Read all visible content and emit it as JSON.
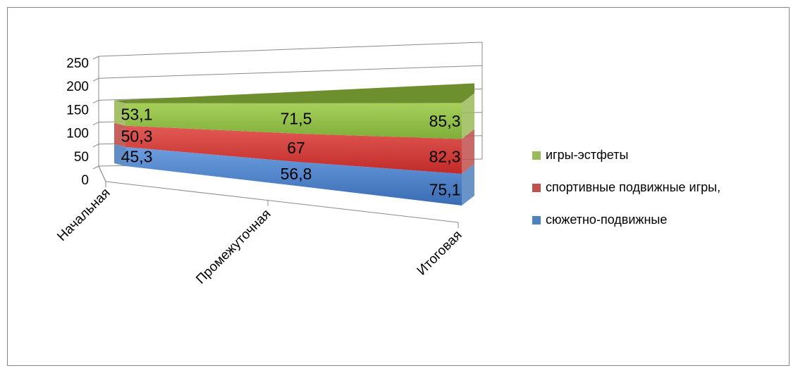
{
  "chart_data": {
    "type": "area",
    "title": "",
    "xlabel": "",
    "ylabel": "",
    "categories": [
      "Начальная",
      "Промежуточная",
      "Итоговая"
    ],
    "yticks": [
      "0",
      "50",
      "100",
      "150",
      "200",
      "250"
    ],
    "ylim": [
      0,
      250
    ],
    "stacked": true,
    "three_d": true,
    "grid": true,
    "legend_position": "right",
    "series": [
      {
        "name": "сюжетно-подвижные",
        "values": [
          45.3,
          56.8,
          75.1
        ],
        "labels": [
          "45,3",
          "56,8",
          "75,1"
        ],
        "color": "#4f81bd"
      },
      {
        "name": "спортивные подвижные игры,",
        "values": [
          50.3,
          67,
          82.3
        ],
        "labels": [
          "50,3",
          "67",
          "82,3"
        ],
        "color": "#c0504d"
      },
      {
        "name": "игры-эстфеты",
        "values": [
          53.1,
          71.5,
          85.3
        ],
        "labels": [
          "53,1",
          "71,5",
          "85,3"
        ],
        "color": "#9bbb59"
      }
    ]
  }
}
